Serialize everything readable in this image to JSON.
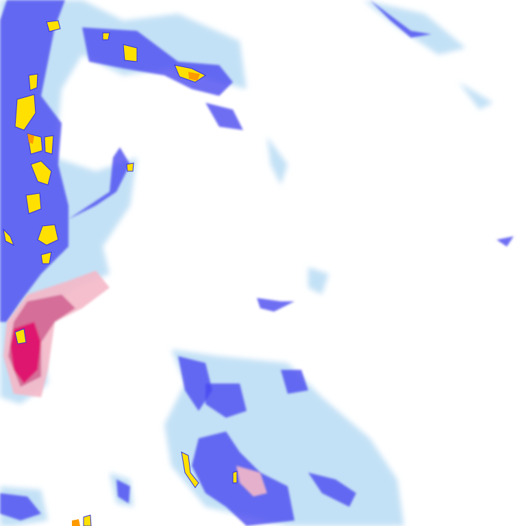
{
  "map": {
    "kind": "precipitation-radar-overlay",
    "colors": {
      "background": "#ffffff",
      "very_light": "#b8dcf5",
      "light": "#8fb8f0",
      "moderate": "#4a4af0",
      "heavy": "#3030e0",
      "intense": "#ffe000",
      "extreme": "#ff9a00",
      "mixed_light": "#f4b8c8",
      "mixed_moderate": "#d06090",
      "mixed_heavy": "#e0106a"
    }
  }
}
